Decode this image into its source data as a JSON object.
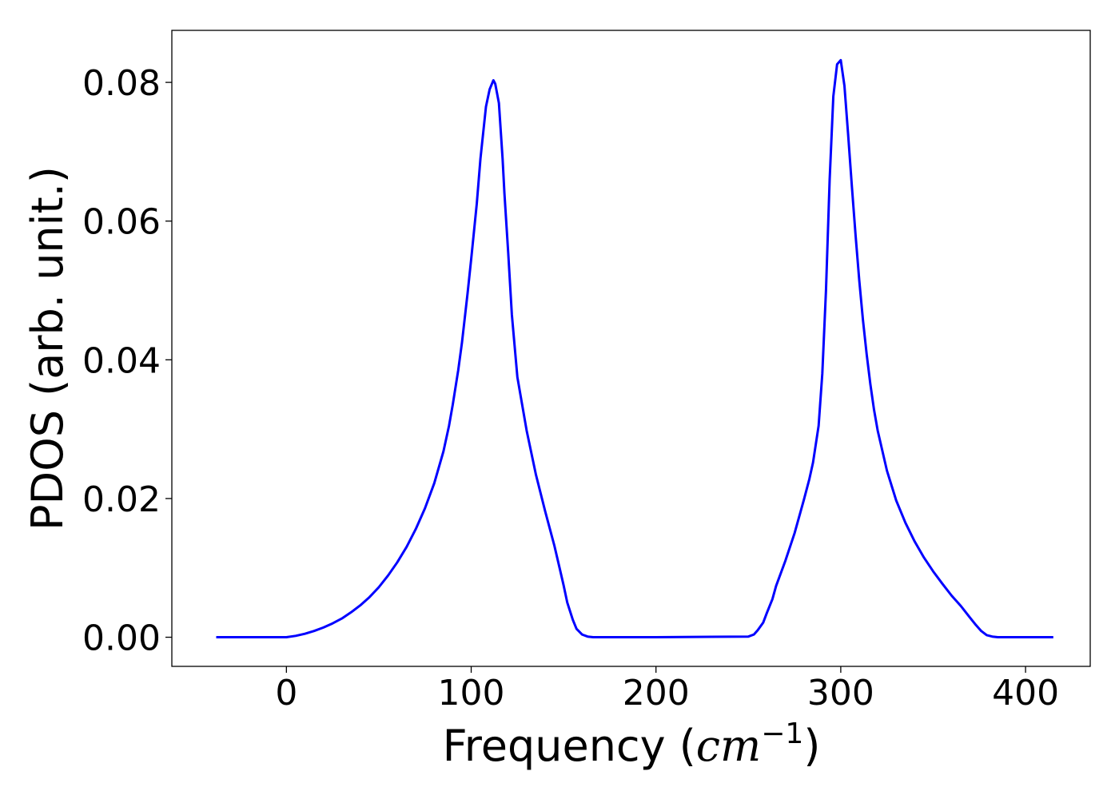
{
  "chart_data": {
    "type": "line",
    "title": "",
    "xlabel": {
      "prefix": "Frequency (",
      "math": "cm",
      "sup": "−1",
      "suffix": ")"
    },
    "ylabel": "PDOS (arb. unit.)",
    "xlim": [
      -62,
      435
    ],
    "ylim": [
      -0.0042,
      0.0875
    ],
    "xticks": [
      0,
      100,
      200,
      300,
      400
    ],
    "xtick_labels": [
      "0",
      "100",
      "200",
      "300",
      "400"
    ],
    "yticks": [
      0.0,
      0.02,
      0.04,
      0.06,
      0.08
    ],
    "ytick_labels": [
      "0.00",
      "0.02",
      "0.04",
      "0.06",
      "0.08"
    ],
    "grid": false,
    "colors": {
      "line": "#0000ff",
      "axes": "#000000"
    },
    "series": [
      {
        "x": [
          -38,
          -20,
          0,
          5,
          10,
          15,
          20,
          25,
          30,
          35,
          40,
          45,
          50,
          55,
          60,
          65,
          70,
          75,
          80,
          85,
          88,
          90,
          93,
          95,
          98,
          100,
          103,
          105,
          108,
          110,
          112,
          113,
          115,
          117,
          118,
          120,
          122,
          125,
          130,
          135,
          140,
          145,
          148,
          150,
          152,
          155,
          157,
          160,
          163,
          166,
          170,
          200,
          250,
          253,
          255,
          258,
          260,
          263,
          265,
          270,
          275,
          280,
          283,
          285,
          288,
          290,
          292,
          294,
          296,
          298,
          300,
          302,
          304,
          306,
          308,
          310,
          312,
          314,
          316,
          318,
          320,
          325,
          330,
          335,
          340,
          345,
          350,
          355,
          360,
          365,
          370,
          373,
          376,
          379,
          382,
          385,
          390,
          400,
          415
        ],
        "y": [
          0.0,
          0.0,
          0.0,
          0.0002,
          0.0005,
          0.0009,
          0.0014,
          0.002,
          0.0027,
          0.0036,
          0.0046,
          0.0058,
          0.0072,
          0.0089,
          0.0108,
          0.013,
          0.0156,
          0.0186,
          0.0222,
          0.0268,
          0.0305,
          0.0335,
          0.0385,
          0.0425,
          0.0495,
          0.0545,
          0.0625,
          0.069,
          0.0765,
          0.079,
          0.0803,
          0.0798,
          0.077,
          0.069,
          0.064,
          0.0555,
          0.0465,
          0.0375,
          0.0298,
          0.0235,
          0.0182,
          0.0132,
          0.0098,
          0.0075,
          0.005,
          0.0025,
          0.0012,
          0.0004,
          0.0001,
          0.0,
          0.0,
          0.0,
          0.0001,
          0.0004,
          0.001,
          0.0021,
          0.0035,
          0.0055,
          0.0074,
          0.011,
          0.015,
          0.0198,
          0.0228,
          0.0252,
          0.0305,
          0.038,
          0.05,
          0.066,
          0.078,
          0.0826,
          0.0832,
          0.0795,
          0.0725,
          0.065,
          0.058,
          0.0515,
          0.0458,
          0.0408,
          0.0365,
          0.0328,
          0.0298,
          0.024,
          0.0197,
          0.0165,
          0.0138,
          0.0115,
          0.0095,
          0.0077,
          0.006,
          0.0045,
          0.0028,
          0.0018,
          0.0009,
          0.0003,
          0.0001,
          0.0,
          0.0,
          0.0,
          0.0
        ]
      }
    ]
  }
}
